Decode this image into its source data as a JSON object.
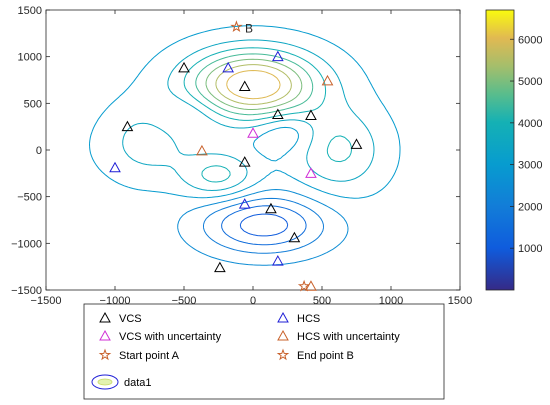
{
  "chart_data": {
    "type": "contour",
    "xlim": [
      -1500,
      1500
    ],
    "ylim": [
      -1500,
      1500
    ],
    "x_ticks": [
      "−1500",
      "−1000",
      "−500",
      "0",
      "500",
      "1000",
      "1500"
    ],
    "y_ticks": [
      "1500",
      "1000",
      "500",
      "0",
      "−500",
      "−1000",
      "−1500"
    ],
    "colorbar": {
      "range": [
        0,
        6700
      ],
      "ticks": [
        "6000",
        "5000",
        "4000",
        "3000",
        "2000",
        "1000"
      ],
      "colormap": "parula"
    },
    "annotations": [
      {
        "text": "B",
        "x": -80,
        "y": 1310
      }
    ],
    "series": [
      {
        "name": "VCS",
        "marker": "triangle",
        "color": "#000000",
        "points": [
          [
            -500,
            880
          ],
          [
            -60,
            680
          ],
          [
            180,
            380
          ],
          [
            420,
            370
          ],
          [
            -910,
            250
          ],
          [
            750,
            60
          ],
          [
            -60,
            -130
          ],
          [
            130,
            -630
          ],
          [
            300,
            -940
          ],
          [
            -240,
            -1260
          ]
        ]
      },
      {
        "name": "HCS",
        "marker": "triangle",
        "color": "#1f1fd6",
        "points": [
          [
            -180,
            880
          ],
          [
            180,
            1000
          ],
          [
            -1000,
            -190
          ],
          [
            -60,
            -580
          ],
          [
            180,
            -1190
          ]
        ]
      },
      {
        "name": "VCS with uncertainty",
        "marker": "triangle",
        "color": "#d02fd6",
        "points": [
          [
            0,
            180
          ],
          [
            420,
            -250
          ]
        ]
      },
      {
        "name": "HCS with uncertainty",
        "marker": "triangle",
        "color": "#c8602a",
        "points": [
          [
            540,
            740
          ],
          [
            -370,
            -10
          ],
          [
            420,
            -1460
          ]
        ]
      },
      {
        "name": "Start point A",
        "marker": "star",
        "color": "#c8602a",
        "points": [
          [
            370,
            -1460
          ]
        ]
      },
      {
        "name": "End point B",
        "marker": "star",
        "color": "#c8602a",
        "points": [
          [
            -120,
            1320
          ]
        ]
      },
      {
        "name": "data1",
        "marker": "contour",
        "color": "#1f1fd6",
        "points": []
      }
    ],
    "surface": {
      "base": 2800,
      "bumps": [
        {
          "cx": 0,
          "cy": 700,
          "sx": 330,
          "sy": 260,
          "amp": 3800
        },
        {
          "cx": -750,
          "cy": 100,
          "sx": 220,
          "sy": 300,
          "amp": 900
        },
        {
          "cx": 620,
          "cy": 0,
          "sx": 230,
          "sy": 320,
          "amp": 1300
        },
        {
          "cx": -250,
          "cy": -280,
          "sx": 190,
          "sy": 180,
          "amp": 1400
        },
        {
          "cx": 80,
          "cy": -800,
          "sx": 320,
          "sy": 220,
          "amp": -2100
        },
        {
          "cx": -1000,
          "cy": 0,
          "sx": 240,
          "sy": 240,
          "amp": 100
        },
        {
          "cx": 250,
          "cy": 200,
          "sx": 150,
          "sy": 150,
          "amp": -700
        },
        {
          "cx": -500,
          "cy": 400,
          "sx": 180,
          "sy": 150,
          "amp": -600
        },
        {
          "cx": 0,
          "cy": 0,
          "sx": 600,
          "sy": 600,
          "amp": 0
        }
      ],
      "levels": [
        1000,
        1500,
        2000,
        2500,
        3000,
        3500,
        4000,
        4500,
        5000,
        5500,
        6000
      ]
    }
  }
}
